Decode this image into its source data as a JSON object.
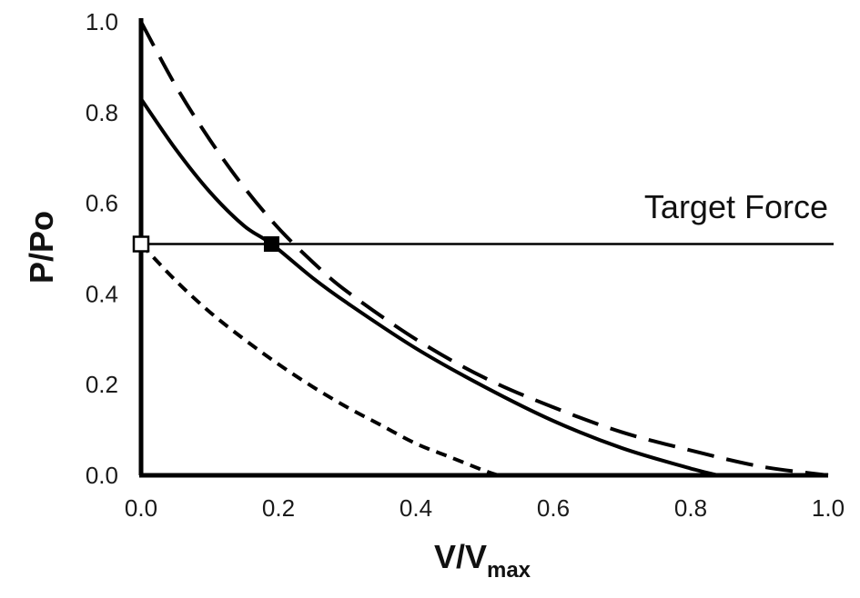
{
  "chart_data": {
    "type": "line",
    "xlabel": "V/V",
    "xlabel_sub": "max",
    "ylabel": "P/Po",
    "xlim": [
      0,
      1
    ],
    "ylim": [
      0,
      1
    ],
    "xticks": [
      "0.0",
      "0.2",
      "0.4",
      "0.6",
      "0.8",
      "1.0"
    ],
    "yticks": [
      "0.0",
      "0.2",
      "0.4",
      "0.6",
      "0.8",
      "1.0"
    ],
    "grid": false,
    "annotation": "Target Force",
    "target_force": 0.51,
    "series": [
      {
        "style": "long-dash",
        "x": [
          0.0,
          0.05,
          0.1,
          0.15,
          0.2,
          0.25,
          0.3,
          0.4,
          0.5,
          0.6,
          0.7,
          0.8,
          0.9,
          1.0
        ],
        "y": [
          1.0,
          0.86,
          0.74,
          0.635,
          0.545,
          0.47,
          0.405,
          0.3,
          0.215,
          0.15,
          0.095,
          0.055,
          0.02,
          0.0
        ]
      },
      {
        "style": "solid",
        "x": [
          0.0,
          0.05,
          0.1,
          0.15,
          0.19,
          0.25,
          0.3,
          0.4,
          0.5,
          0.6,
          0.7,
          0.8,
          0.84
        ],
        "y": [
          0.83,
          0.72,
          0.625,
          0.55,
          0.51,
          0.435,
          0.38,
          0.28,
          0.195,
          0.12,
          0.06,
          0.015,
          0.0
        ]
      },
      {
        "style": "short-dash",
        "x": [
          0.0,
          0.05,
          0.1,
          0.15,
          0.2,
          0.25,
          0.3,
          0.35,
          0.4,
          0.45,
          0.5,
          0.52
        ],
        "y": [
          0.51,
          0.43,
          0.36,
          0.3,
          0.245,
          0.195,
          0.15,
          0.11,
          0.07,
          0.04,
          0.01,
          0.0
        ]
      }
    ],
    "markers": [
      {
        "shape": "square-open",
        "x": 0.0,
        "y": 0.51
      },
      {
        "shape": "square-filled",
        "x": 0.19,
        "y": 0.51
      }
    ]
  }
}
